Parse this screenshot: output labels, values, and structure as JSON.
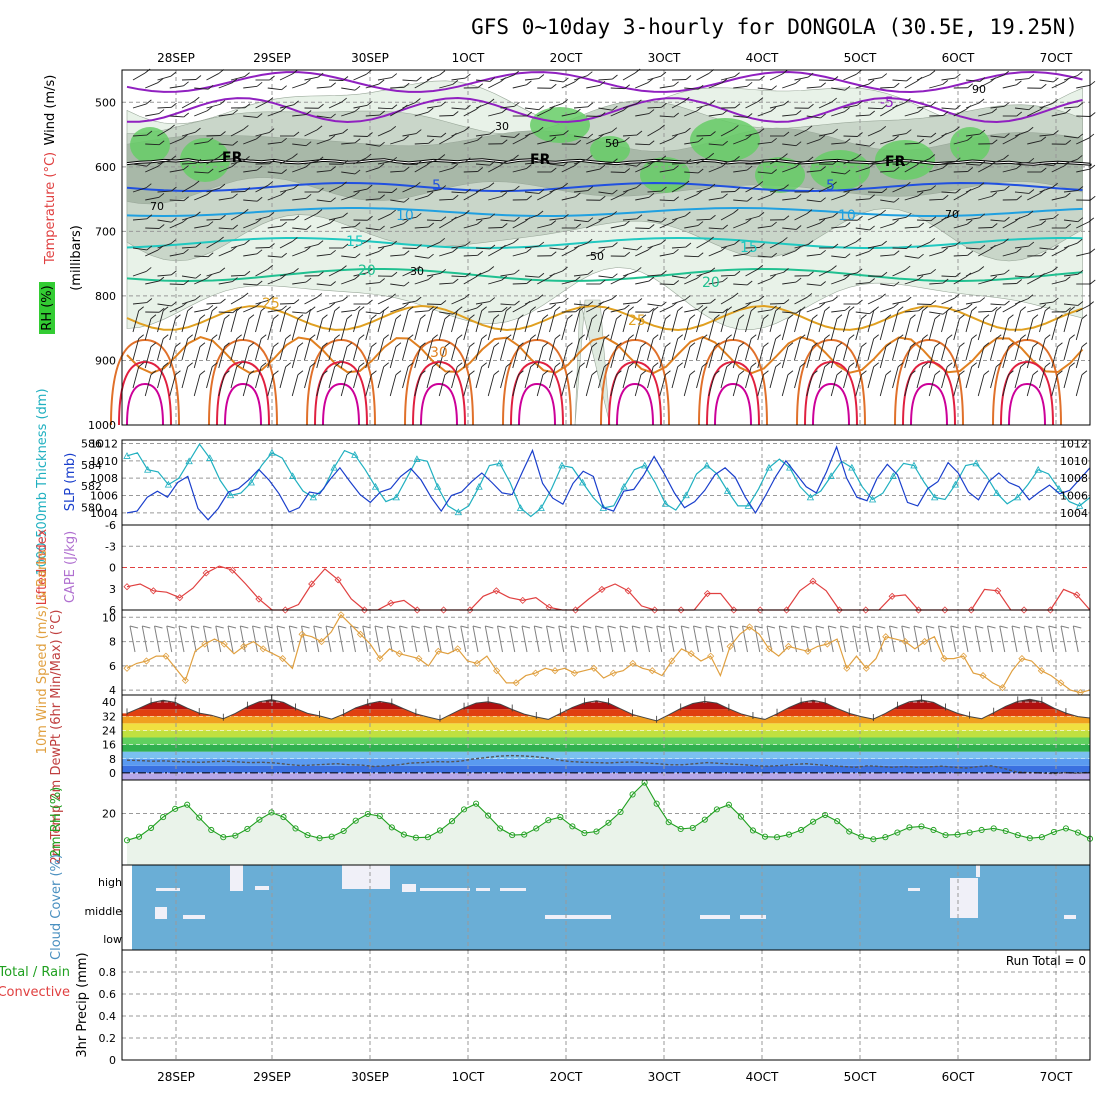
{
  "title": "GFS 0~10day 3-hourly for DONGOLA (30.5E, 19.25N)",
  "date_labels": [
    "28SEP",
    "29SEP",
    "30SEP",
    "1OCT",
    "2OCT",
    "3OCT",
    "4OCT",
    "5OCT",
    "6OCT",
    "7OCT"
  ],
  "run_total": "Run Total = 0",
  "colors": {
    "temp_warm": "#e0a020",
    "temp_mid": "#e08020",
    "temp_hot": "#e02040",
    "temp_vhot": "#cc0099",
    "temp_cold": "#2050e0",
    "temp_c10": "#20a0e0",
    "temp_c15": "#20c8c0",
    "temp_c20": "#20c090",
    "neg5": "#9020c0",
    "slp": "#1a3fcc",
    "thick": "#20b0c0",
    "li": "#e04040",
    "wind10": "#e0a040",
    "barb": "#808080",
    "rh": "#20a020",
    "cloud": "#6aaed6",
    "cloud_gap": "#f0f0f8",
    "rh_fill": "#c8dcc8",
    "green_fill": "#66cc66"
  },
  "chart_data": [
    {
      "id": "upper_air",
      "type": "area",
      "title": "",
      "ylabel": "(millibars)",
      "y_ticks": [
        500,
        600,
        700,
        800,
        900,
        1000
      ],
      "ylim": [
        1000,
        450
      ],
      "legend": [
        "Wind (m/s)",
        "Temperature (°C)",
        "RH (%)"
      ],
      "contour_labels": [
        "-5",
        "FR",
        "5",
        "10",
        "15",
        "20",
        "25",
        "30"
      ],
      "rh_labels": [
        "30",
        "50",
        "70",
        "90"
      ],
      "freezing_level": [
        595,
        593,
        592,
        590,
        591,
        589,
        592,
        591,
        590,
        589,
        591,
        592,
        590,
        593,
        594,
        592,
        590,
        591,
        593,
        592,
        590,
        589,
        592,
        594,
        592,
        590,
        591,
        592,
        590,
        589,
        591,
        593,
        590,
        589,
        592,
        593,
        591,
        590,
        592,
        594,
        595,
        593,
        592,
        590,
        591,
        592,
        593,
        590,
        591,
        594,
        592,
        593,
        591,
        590,
        592,
        594,
        593,
        591,
        590,
        592,
        593,
        594,
        592,
        590,
        591,
        593,
        595,
        594,
        593,
        591,
        592,
        594,
        593,
        595,
        596,
        594,
        593,
        594,
        595,
        596,
        595
      ]
    },
    {
      "id": "slp_thickness",
      "type": "line",
      "ylabel": "SLP (mb)",
      "ylabel2": "1000-500mb Thickness (dm)",
      "y_ticks": [
        1004,
        1006,
        1008,
        1010,
        1012
      ],
      "y2_ticks": [
        580,
        582,
        584,
        586
      ],
      "series": [
        {
          "name": "SLP",
          "values": [
            1004.0,
            1004.2,
            1005.8,
            1006.5,
            1005.8,
            1007.5,
            1008.2,
            1004.5,
            1003.2,
            1004.5,
            1006.4,
            1006.8,
            1007.8,
            1009.0,
            1007.8,
            1006.2,
            1004.1,
            1004.6,
            1006.4,
            1006.2,
            1007.8,
            1009.2,
            1007.6,
            1006.1,
            1005.2,
            1006.4,
            1006.8,
            1008.2,
            1009.1,
            1007.8,
            1005.8,
            1004.2,
            1006.0,
            1006.4,
            1007.6,
            1008.6,
            1007.5,
            1006.3,
            1006.1,
            1008.7,
            1011.2,
            1007.4,
            1005.7,
            1005.0,
            1007.4,
            1008.8,
            1008.2,
            1004.6,
            1004.2,
            1006.5,
            1006.7,
            1008.4,
            1010.5,
            1008.5,
            1006.3,
            1004.6,
            1005.3,
            1006.6,
            1008.4,
            1009.2,
            1008.1,
            1005.8,
            1004.0,
            1006.0,
            1008.2,
            1010.0,
            1008.5,
            1007.0,
            1006.3,
            1008.7,
            1011.6,
            1008.0,
            1005.8,
            1005.4,
            1008.0,
            1009.6,
            1008.4,
            1005.2,
            1004.8,
            1006.8,
            1007.6,
            1009.8,
            1008.6,
            1006.4,
            1005.5,
            1007.6,
            1008.6,
            1007.5,
            1007.0,
            1005.5,
            1006.4,
            1007.2,
            1006.2,
            1006.6,
            1007.9,
            1009.2
          ]
        },
        {
          "name": "Thickness",
          "values": [
            585.5,
            585.8,
            584.2,
            584.0,
            582.8,
            583.4,
            585.0,
            586.6,
            585.3,
            583.2,
            581.8,
            582.0,
            583.0,
            584.6,
            585.8,
            585.3,
            583.6,
            582.2,
            581.6,
            582.4,
            584.4,
            586.0,
            585.6,
            584.2,
            582.6,
            581.2,
            581.6,
            583.4,
            585.2,
            585.0,
            582.6,
            580.8,
            580.2,
            580.8,
            582.6,
            584.6,
            584.8,
            583.0,
            580.6,
            579.8,
            580.6,
            582.4,
            584.6,
            584.4,
            583.0,
            581.6,
            580.6,
            580.8,
            582.6,
            584.2,
            584.6,
            583.0,
            581.0,
            580.4,
            581.8,
            583.8,
            584.6,
            583.8,
            582.2,
            580.8,
            580.8,
            582.4,
            584.4,
            585.2,
            584.4,
            582.6,
            581.6,
            582.2,
            583.6,
            585.0,
            584.4,
            582.6,
            581.4,
            582.0,
            583.6,
            584.8,
            584.6,
            583.0,
            581.6,
            581.4,
            582.8,
            584.6,
            584.8,
            583.6,
            582.0,
            581.0,
            581.6,
            582.8,
            584.2,
            583.8,
            582.4,
            581.2,
            580.8,
            581.6
          ]
        }
      ]
    },
    {
      "id": "stability",
      "type": "line",
      "ylabel": "Lifted Index",
      "ylabel2": "CAPE (J/kg)",
      "y_ticks": [
        -6,
        -3,
        0,
        3,
        6
      ],
      "ylim": [
        6,
        -6
      ],
      "series": [
        {
          "name": "Lifted Index",
          "values": [
            3.0,
            2.6,
            3.6,
            3.8,
            4.6,
            3.2,
            1.0,
            0.0,
            0.6,
            2.6,
            4.8,
            6.5,
            6.5,
            5.6,
            2.6,
            0.4,
            2.0,
            4.8,
            6.5,
            6.5,
            5.4,
            5.0,
            6.5,
            6.5,
            6.5,
            6.5,
            6.5,
            4.4,
            3.6,
            4.6,
            5.0,
            4.6,
            6.0,
            6.5,
            6.5,
            4.8,
            3.4,
            2.6,
            3.6,
            5.8,
            6.5,
            6.5,
            6.5,
            6.5,
            4.0,
            4.0,
            6.5,
            6.5,
            6.5,
            6.5,
            6.5,
            3.6,
            2.2,
            3.6,
            6.5,
            6.5,
            6.5,
            6.5,
            4.4,
            4.2,
            6.5,
            6.5,
            6.5,
            6.5,
            6.5,
            3.4,
            3.6,
            6.5,
            6.5,
            6.5,
            6.5,
            3.4,
            4.2,
            6.5
          ]
        }
      ]
    },
    {
      "id": "wind10m",
      "type": "line",
      "ylabel": "10m Wind Speed (m/s) & Barbs",
      "y_ticks": [
        4,
        6,
        8,
        10
      ],
      "ylim": [
        3.6,
        10.6
      ],
      "series": [
        {
          "name": "10m Wind Speed",
          "values": [
            5.8,
            6.2,
            6.4,
            6.8,
            6.8,
            5.8,
            4.8,
            7.2,
            7.8,
            8.2,
            7.8,
            7.0,
            7.6,
            8.0,
            7.4,
            7.0,
            6.6,
            5.8,
            8.6,
            8.4,
            8.0,
            8.8,
            10.2,
            9.4,
            8.6,
            7.8,
            6.6,
            7.4,
            7.0,
            6.8,
            6.6,
            6.0,
            7.2,
            7.0,
            7.4,
            6.4,
            6.2,
            6.8,
            5.6,
            4.6,
            4.6,
            5.2,
            5.4,
            5.8,
            5.6,
            5.8,
            5.4,
            5.6,
            5.8,
            5.0,
            5.4,
            5.6,
            6.2,
            5.8,
            5.6,
            5.2,
            6.4,
            7.4,
            7.0,
            6.4,
            6.8,
            5.2,
            7.6,
            8.6,
            9.2,
            8.6,
            7.4,
            6.8,
            7.6,
            7.4,
            7.2,
            7.6,
            7.8,
            8.2,
            5.8,
            6.8,
            5.8,
            6.6,
            8.4,
            8.2,
            8.0,
            7.4,
            8.0,
            8.4,
            6.6,
            6.6,
            6.8,
            5.4,
            5.2,
            4.6,
            4.2,
            5.6,
            6.6,
            6.4,
            5.6,
            5.2,
            4.6,
            4.0,
            3.8,
            4.0
          ]
        }
      ]
    },
    {
      "id": "temp2m",
      "type": "area",
      "ylabel": "2m Temp 2m DewPt (6hr Min/Max) (°C)",
      "y_ticks": [
        0,
        8,
        16,
        24,
        32,
        40
      ],
      "ylim": [
        -4,
        44
      ],
      "series": [
        {
          "name": "2m Temp",
          "values": [
            33.6,
            36.5,
            39.6,
            41.0,
            39.8,
            36.6,
            33.8,
            32.6,
            30.6,
            33.6,
            37.4,
            40.2,
            41.4,
            39.8,
            36.4,
            33.6,
            32.2,
            30.4,
            33.2,
            36.8,
            39.0,
            40.4,
            39.2,
            36.2,
            33.4,
            31.6,
            30.0,
            33.4,
            36.8,
            39.4,
            40.2,
            38.8,
            35.8,
            33.2,
            31.6,
            30.2,
            33.6,
            37.0,
            39.6,
            40.8,
            39.4,
            36.2,
            33.0,
            31.2,
            29.4,
            32.8,
            36.4,
            39.2,
            40.4,
            39.4,
            36.2,
            33.4,
            31.6,
            30.2,
            33.4,
            37.0,
            39.8,
            41.0,
            39.6,
            36.4,
            33.6,
            31.8,
            30.4,
            33.6,
            37.4,
            40.2,
            41.2,
            39.8,
            36.4,
            33.6,
            31.8,
            30.6,
            34.0,
            37.6,
            40.4,
            41.6,
            40.2,
            36.6,
            33.8,
            31.8,
            31.0
          ]
        },
        {
          "name": "2m DewPt",
          "values": [
            7.2,
            7.0,
            6.6,
            6.8,
            6.4,
            6.2,
            6.0,
            6.4,
            6.6,
            6.2,
            5.8,
            6.0,
            5.6,
            4.8,
            4.2,
            4.4,
            4.8,
            5.2,
            4.6,
            4.4,
            3.6,
            4.0,
            4.6,
            5.6,
            5.8,
            6.4,
            6.2,
            6.6,
            7.8,
            8.6,
            9.4,
            9.8,
            9.6,
            9.2,
            8.4,
            7.2,
            6.4,
            6.0,
            5.8,
            5.6,
            6.0,
            6.2,
            5.6,
            5.2,
            4.6,
            4.6,
            5.2,
            5.8,
            5.4,
            5.0,
            4.6,
            4.0,
            3.8,
            4.2,
            4.8,
            5.2,
            4.6,
            4.0,
            3.6,
            3.2,
            4.0,
            3.6,
            3.2,
            3.6,
            3.2,
            3.4,
            3.8,
            3.2,
            2.8,
            3.6,
            4.0,
            2.6,
            0.6,
            0.2,
            0.0,
            -0.4,
            0.2,
            -0.2,
            0.4
          ]
        }
      ]
    },
    {
      "id": "rh2m",
      "type": "area",
      "ylabel": "2m RH (%)",
      "y_ticks": [
        20
      ],
      "ylim": [
        0,
        33
      ],
      "series": [
        {
          "name": "2m RH",
          "values": [
            9.6,
            11.0,
            14.4,
            18.6,
            21.8,
            23.4,
            18.4,
            13.6,
            10.8,
            11.4,
            14.0,
            17.6,
            20.4,
            18.6,
            14.2,
            11.6,
            10.4,
            11.0,
            13.2,
            17.2,
            19.8,
            19.0,
            14.6,
            11.8,
            10.6,
            10.8,
            13.4,
            17.0,
            21.6,
            23.8,
            19.2,
            14.2,
            11.6,
            11.8,
            14.2,
            17.4,
            18.6,
            15.0,
            12.4,
            13.0,
            16.4,
            20.6,
            27.4,
            32.0,
            23.8,
            16.6,
            14.0,
            14.4,
            17.6,
            21.6,
            23.4,
            18.8,
            13.4,
            11.0,
            10.8,
            11.8,
            13.6,
            16.8,
            19.4,
            17.0,
            13.0,
            11.0,
            10.0,
            10.8,
            12.6,
            14.6,
            15.0,
            13.6,
            11.6,
            11.8,
            12.6,
            13.6,
            14.2,
            13.2,
            11.6,
            10.4,
            10.8,
            12.8,
            14.2,
            12.6,
            10.2
          ]
        }
      ]
    },
    {
      "id": "cloud_cover",
      "type": "heatmap",
      "ylabel": "Cloud Cover (%)",
      "y_ticks": [
        "high",
        "middle",
        "low"
      ]
    },
    {
      "id": "precip",
      "type": "bar",
      "ylabel": "3hr Precip (mm)",
      "legend": [
        "Total / Rain",
        "Convective"
      ],
      "y_ticks": [
        0,
        0.2,
        0.4,
        0.6,
        0.8
      ],
      "ylim": [
        0,
        1.0
      ],
      "values": []
    }
  ]
}
